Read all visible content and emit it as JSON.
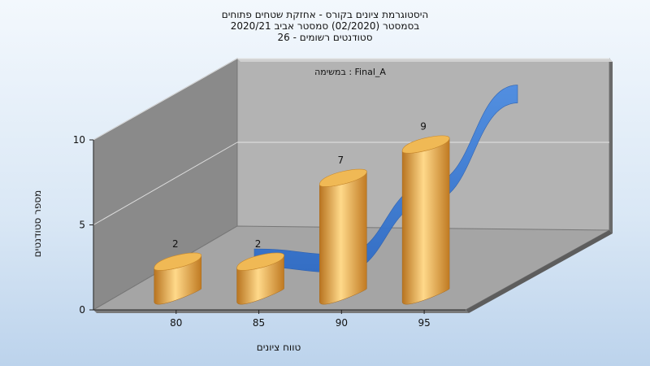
{
  "chart_data": {
    "type": "bar",
    "title_lines": [
      "היסטוגרמת ציונים בקורס - אחזקת שטחים פתוחים",
      "בסמסטר  (02/2020)  סמסטר אביב 2020/21",
      "סטודנטים רשומים - 26"
    ],
    "categories": [
      "80",
      "85",
      "90",
      "95"
    ],
    "values": [
      2,
      2,
      7,
      9
    ],
    "trend_values": [
      1,
      0.7,
      4.5,
      9.8
    ],
    "xlabel": "טווח ציונים",
    "ylabel": "מספר סטודנטים",
    "ylim": [
      0,
      10
    ],
    "yticks": [
      0,
      5,
      10
    ],
    "annotation": "במשימה : Final_A",
    "grid": true,
    "legend": "none",
    "colors": {
      "bar_light": "#ffd98a",
      "bar_mid": "#e8a94a",
      "bar_dark": "#b87420",
      "bar_top": "#f0b955",
      "trend": "#3a7bd5",
      "back_wall": "#b4b4b4",
      "side_wall": "#8c8c8c",
      "floor": "#a6a6a6"
    }
  }
}
